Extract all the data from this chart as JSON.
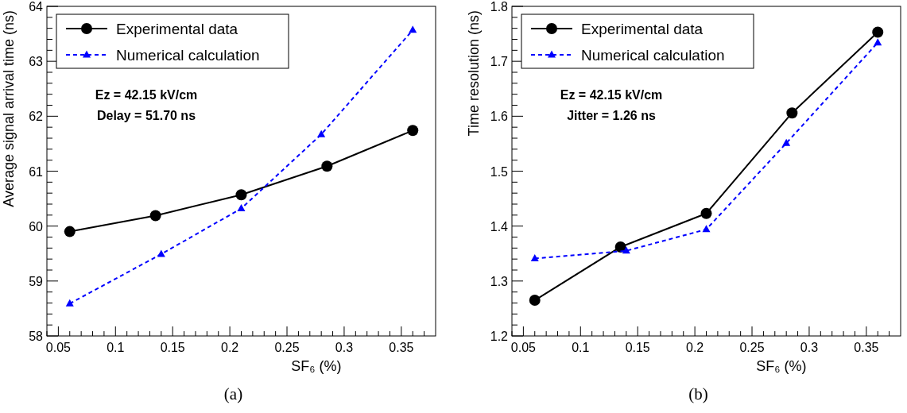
{
  "chart_data": [
    {
      "type": "line",
      "title": "(a)",
      "xlabel": "SF₆ (%)",
      "ylabel": "Average signal arrival time (ns)",
      "annotations": [
        "Ez = 42.15 kV/cm",
        "Delay = 51.70 ns"
      ],
      "legend": "top left",
      "xlim": [
        0.04,
        0.38
      ],
      "ylim": [
        58,
        64
      ],
      "xticks": [
        {
          "value": 0.04,
          "label": null
        },
        0.05,
        {
          "value": 0.06,
          "label": null
        },
        {
          "value": 0.07,
          "label": null
        },
        {
          "value": 0.08,
          "label": null
        },
        {
          "value": 0.09,
          "label": null
        },
        0.1,
        {
          "value": 0.11,
          "label": null
        },
        {
          "value": 0.12,
          "label": null
        },
        {
          "value": 0.13,
          "label": null
        },
        {
          "value": 0.14,
          "label": null
        },
        0.15,
        {
          "value": 0.16,
          "label": null
        },
        {
          "value": 0.17,
          "label": null
        },
        {
          "value": 0.18,
          "label": null
        },
        {
          "value": 0.19,
          "label": null
        },
        0.2,
        {
          "value": 0.21,
          "label": null
        },
        {
          "value": 0.22,
          "label": null
        },
        {
          "value": 0.23,
          "label": null
        },
        {
          "value": 0.24,
          "label": null
        },
        0.25,
        {
          "value": 0.26,
          "label": null
        },
        {
          "value": 0.27,
          "label": null
        },
        {
          "value": 0.28,
          "label": null
        },
        {
          "value": 0.29,
          "label": null
        },
        0.3,
        {
          "value": 0.31,
          "label": null
        },
        {
          "value": 0.32,
          "label": null
        },
        {
          "value": 0.33,
          "label": null
        },
        {
          "value": 0.34,
          "label": null
        },
        0.35,
        {
          "value": 0.36,
          "label": null
        },
        {
          "value": 0.37,
          "label": null
        }
      ],
      "yticks": [
        58,
        {
          "value": 58.2,
          "label": null
        },
        {
          "value": 58.4,
          "label": null
        },
        {
          "value": 58.6,
          "label": null
        },
        {
          "value": 58.8,
          "label": null
        },
        59,
        {
          "value": 59.2,
          "label": null
        },
        {
          "value": 59.4,
          "label": null
        },
        {
          "value": 59.6,
          "label": null
        },
        {
          "value": 59.8,
          "label": null
        },
        60,
        {
          "value": 60.2,
          "label": null
        },
        {
          "value": 60.4,
          "label": null
        },
        {
          "value": 60.6,
          "label": null
        },
        {
          "value": 60.8,
          "label": null
        },
        61,
        {
          "value": 61.2,
          "label": null
        },
        {
          "value": 61.4,
          "label": null
        },
        {
          "value": 61.6,
          "label": null
        },
        {
          "value": 61.8,
          "label": null
        },
        62,
        {
          "value": 62.2,
          "label": null
        },
        {
          "value": 62.4,
          "label": null
        },
        {
          "value": 62.6,
          "label": null
        },
        {
          "value": 62.8,
          "label": null
        },
        63,
        {
          "value": 63.2,
          "label": null
        },
        {
          "value": 63.4,
          "label": null
        },
        {
          "value": 63.6,
          "label": null
        },
        {
          "value": 63.8,
          "label": null
        },
        64
      ],
      "series": [
        {
          "name": "Experimental data",
          "color": "#000000",
          "marker": "circle",
          "line_style": "solid",
          "x": [
            0.06,
            0.135,
            0.21,
            0.285,
            0.36
          ],
          "values": [
            59.9,
            60.19,
            60.57,
            61.09,
            61.74
          ]
        },
        {
          "name": "Numerical calculation",
          "color": "#0000ff",
          "marker": "triangle",
          "line_style": "dashed",
          "x": [
            0.06,
            0.14,
            0.21,
            0.28,
            0.36
          ],
          "values": [
            58.59,
            59.49,
            60.32,
            61.67,
            63.57
          ]
        }
      ]
    },
    {
      "type": "line",
      "title": "(b)",
      "xlabel": "SF₆ (%)",
      "ylabel": "Time resolution (ns)",
      "annotations": [
        "Ez = 42.15 kV/cm",
        "Jitter = 1.26 ns"
      ],
      "legend": "top left",
      "xlim": [
        0.04,
        0.38
      ],
      "ylim": [
        1.2,
        1.8
      ],
      "xticks": [
        {
          "value": 0.04,
          "label": null
        },
        0.05,
        {
          "value": 0.06,
          "label": null
        },
        {
          "value": 0.07,
          "label": null
        },
        {
          "value": 0.08,
          "label": null
        },
        {
          "value": 0.09,
          "label": null
        },
        0.1,
        {
          "value": 0.11,
          "label": null
        },
        {
          "value": 0.12,
          "label": null
        },
        {
          "value": 0.13,
          "label": null
        },
        {
          "value": 0.14,
          "label": null
        },
        0.15,
        {
          "value": 0.16,
          "label": null
        },
        {
          "value": 0.17,
          "label": null
        },
        {
          "value": 0.18,
          "label": null
        },
        {
          "value": 0.19,
          "label": null
        },
        0.2,
        {
          "value": 0.21,
          "label": null
        },
        {
          "value": 0.22,
          "label": null
        },
        {
          "value": 0.23,
          "label": null
        },
        {
          "value": 0.24,
          "label": null
        },
        0.25,
        {
          "value": 0.26,
          "label": null
        },
        {
          "value": 0.27,
          "label": null
        },
        {
          "value": 0.28,
          "label": null
        },
        {
          "value": 0.29,
          "label": null
        },
        0.3,
        {
          "value": 0.31,
          "label": null
        },
        {
          "value": 0.32,
          "label": null
        },
        {
          "value": 0.33,
          "label": null
        },
        {
          "value": 0.34,
          "label": null
        },
        0.35,
        {
          "value": 0.36,
          "label": null
        },
        {
          "value": 0.37,
          "label": null
        }
      ],
      "yticks": [
        1.2,
        {
          "value": 1.22,
          "label": null
        },
        {
          "value": 1.24,
          "label": null
        },
        {
          "value": 1.26,
          "label": null
        },
        {
          "value": 1.28,
          "label": null
        },
        1.3,
        {
          "value": 1.32,
          "label": null
        },
        {
          "value": 1.34,
          "label": null
        },
        {
          "value": 1.36,
          "label": null
        },
        {
          "value": 1.38,
          "label": null
        },
        1.4,
        {
          "value": 1.42,
          "label": null
        },
        {
          "value": 1.44,
          "label": null
        },
        {
          "value": 1.46,
          "label": null
        },
        {
          "value": 1.48,
          "label": null
        },
        1.5,
        {
          "value": 1.52,
          "label": null
        },
        {
          "value": 1.54,
          "label": null
        },
        {
          "value": 1.56,
          "label": null
        },
        {
          "value": 1.58,
          "label": null
        },
        1.6,
        {
          "value": 1.62,
          "label": null
        },
        {
          "value": 1.64,
          "label": null
        },
        {
          "value": 1.66,
          "label": null
        },
        {
          "value": 1.68,
          "label": null
        },
        1.7,
        {
          "value": 1.72,
          "label": null
        },
        {
          "value": 1.74,
          "label": null
        },
        {
          "value": 1.76,
          "label": null
        },
        {
          "value": 1.78,
          "label": null
        },
        1.8
      ],
      "series": [
        {
          "name": "Experimental data",
          "color": "#000000",
          "marker": "circle",
          "line_style": "solid",
          "x": [
            0.06,
            0.135,
            0.21,
            0.285,
            0.36
          ],
          "values": [
            1.265,
            1.362,
            1.423,
            1.606,
            1.753
          ]
        },
        {
          "name": "Numerical calculation",
          "color": "#0000ff",
          "marker": "triangle",
          "line_style": "dashed",
          "x": [
            0.06,
            0.14,
            0.21,
            0.28,
            0.36
          ],
          "values": [
            1.341,
            1.355,
            1.394,
            1.551,
            1.734
          ]
        }
      ]
    }
  ]
}
